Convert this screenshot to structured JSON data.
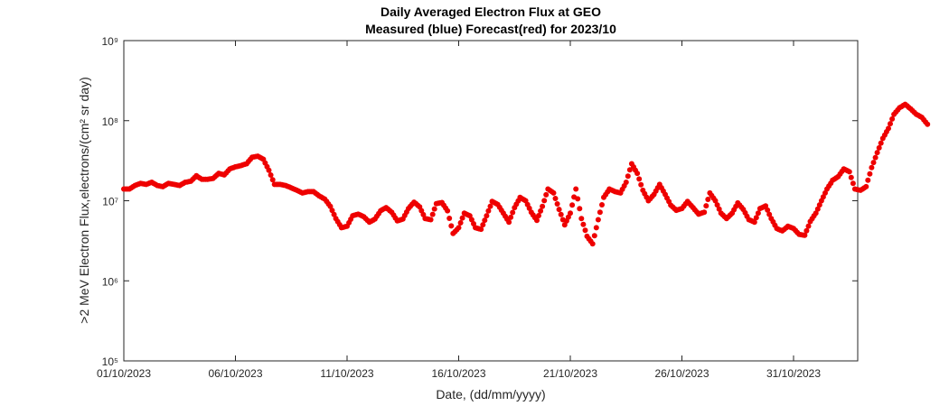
{
  "chart_data": {
    "type": "scatter",
    "title": "Daily Averaged Electron Flux at GEO",
    "subtitle": "Measured (blue) Forecast(red) for 2023/10",
    "xlabel": "Date, (dd/mm/yyyy)",
    "ylabel": ">2 MeV Electron Flux,electrons/(cm² sr day)",
    "yscale": "log",
    "ylim": [
      100000,
      1000000000
    ],
    "xlim": [
      "2023-10-01",
      "2023-11-04"
    ],
    "x_ticks": [
      "01/10/2023",
      "06/10/2023",
      "11/10/2023",
      "16/10/2023",
      "21/10/2023",
      "26/10/2023",
      "31/10/2023"
    ],
    "y_ticks": [
      "10⁵",
      "10⁶",
      "10⁷",
      "10⁸",
      "10⁹"
    ],
    "grid": false,
    "marker_color": "#ee0000",
    "series": [
      {
        "color": "#ee0000",
        "points": [
          [
            "2023-10-01 00:00",
            14000000
          ],
          [
            "2023-10-01 06:00",
            14000000
          ],
          [
            "2023-10-01 12:00",
            15500000
          ],
          [
            "2023-10-01 18:00",
            16500000
          ],
          [
            "2023-10-02 00:00",
            16000000
          ],
          [
            "2023-10-02 06:00",
            17000000
          ],
          [
            "2023-10-02 12:00",
            15500000
          ],
          [
            "2023-10-02 18:00",
            15000000
          ],
          [
            "2023-10-03 00:00",
            16500000
          ],
          [
            "2023-10-03 06:00",
            16000000
          ],
          [
            "2023-10-03 12:00",
            15500000
          ],
          [
            "2023-10-03 18:00",
            17000000
          ],
          [
            "2023-10-04 00:00",
            17500000
          ],
          [
            "2023-10-04 06:00",
            20500000
          ],
          [
            "2023-10-04 12:00",
            18500000
          ],
          [
            "2023-10-04 18:00",
            18500000
          ],
          [
            "2023-10-05 00:00",
            19000000
          ],
          [
            "2023-10-05 06:00",
            22000000
          ],
          [
            "2023-10-05 12:00",
            21000000
          ],
          [
            "2023-10-05 18:00",
            25000000
          ],
          [
            "2023-10-06 00:00",
            26500000
          ],
          [
            "2023-10-06 06:00",
            27500000
          ],
          [
            "2023-10-06 12:00",
            29000000
          ],
          [
            "2023-10-06 18:00",
            35000000
          ],
          [
            "2023-10-07 00:00",
            36000000
          ],
          [
            "2023-10-07 06:00",
            33000000
          ],
          [
            "2023-10-07 12:00",
            24000000
          ],
          [
            "2023-10-07 18:00",
            16000000
          ],
          [
            "2023-10-08 00:00",
            16000000
          ],
          [
            "2023-10-08 06:00",
            15500000
          ],
          [
            "2023-10-08 12:00",
            14500000
          ],
          [
            "2023-10-08 18:00",
            13500000
          ],
          [
            "2023-10-09 00:00",
            12500000
          ],
          [
            "2023-10-09 06:00",
            13000000
          ],
          [
            "2023-10-09 12:00",
            13000000
          ],
          [
            "2023-10-09 18:00",
            11500000
          ],
          [
            "2023-10-10 00:00",
            10500000
          ],
          [
            "2023-10-10 06:00",
            8500000
          ],
          [
            "2023-10-10 12:00",
            6000000
          ],
          [
            "2023-10-10 18:00",
            4600000
          ],
          [
            "2023-10-11 00:00",
            4800000
          ],
          [
            "2023-10-11 06:00",
            6500000
          ],
          [
            "2023-10-11 12:00",
            6800000
          ],
          [
            "2023-10-11 18:00",
            6300000
          ],
          [
            "2023-10-12 00:00",
            5400000
          ],
          [
            "2023-10-12 06:00",
            5900000
          ],
          [
            "2023-10-12 12:00",
            7500000
          ],
          [
            "2023-10-12 18:00",
            8200000
          ],
          [
            "2023-10-13 00:00",
            7200000
          ],
          [
            "2023-10-13 06:00",
            5600000
          ],
          [
            "2023-10-13 12:00",
            5900000
          ],
          [
            "2023-10-13 18:00",
            8000000
          ],
          [
            "2023-10-14 00:00",
            9600000
          ],
          [
            "2023-10-14 06:00",
            8400000
          ],
          [
            "2023-10-14 12:00",
            6000000
          ],
          [
            "2023-10-14 18:00",
            5800000
          ],
          [
            "2023-10-15 00:00",
            9200000
          ],
          [
            "2023-10-15 06:00",
            9500000
          ],
          [
            "2023-10-15 12:00",
            7500000
          ],
          [
            "2023-10-15 18:00",
            3900000
          ],
          [
            "2023-10-16 00:00",
            4600000
          ],
          [
            "2023-10-16 06:00",
            7000000
          ],
          [
            "2023-10-16 12:00",
            6500000
          ],
          [
            "2023-10-16 18:00",
            4600000
          ],
          [
            "2023-10-17 00:00",
            4400000
          ],
          [
            "2023-10-17 06:00",
            6500000
          ],
          [
            "2023-10-17 12:00",
            9800000
          ],
          [
            "2023-10-17 18:00",
            9000000
          ],
          [
            "2023-10-18 00:00",
            7000000
          ],
          [
            "2023-10-18 06:00",
            5400000
          ],
          [
            "2023-10-18 12:00",
            8200000
          ],
          [
            "2023-10-18 18:00",
            11000000
          ],
          [
            "2023-10-19 00:00",
            10000000
          ],
          [
            "2023-10-19 06:00",
            7200000
          ],
          [
            "2023-10-19 12:00",
            5700000
          ],
          [
            "2023-10-19 18:00",
            8500000
          ],
          [
            "2023-10-20 00:00",
            14000000
          ],
          [
            "2023-10-20 06:00",
            12500000
          ],
          [
            "2023-10-20 12:00",
            7800000
          ],
          [
            "2023-10-20 18:00",
            5000000
          ],
          [
            "2023-10-21 00:00",
            7000000
          ],
          [
            "2023-10-21 06:00",
            14000000
          ],
          [
            "2023-10-21 12:00",
            6000000
          ],
          [
            "2023-10-21 18:00",
            3600000
          ],
          [
            "2023-10-22 00:00",
            2900000
          ],
          [
            "2023-10-22 06:00",
            5800000
          ],
          [
            "2023-10-22 12:00",
            11000000
          ],
          [
            "2023-10-22 18:00",
            14000000
          ],
          [
            "2023-10-23 00:00",
            13000000
          ],
          [
            "2023-10-23 06:00",
            12500000
          ],
          [
            "2023-10-23 12:00",
            17000000
          ],
          [
            "2023-10-23 18:00",
            29000000
          ],
          [
            "2023-10-24 00:00",
            22000000
          ],
          [
            "2023-10-24 06:00",
            13500000
          ],
          [
            "2023-10-24 12:00",
            10000000
          ],
          [
            "2023-10-24 18:00",
            12000000
          ],
          [
            "2023-10-25 00:00",
            16000000
          ],
          [
            "2023-10-25 06:00",
            12000000
          ],
          [
            "2023-10-25 12:00",
            8800000
          ],
          [
            "2023-10-25 18:00",
            7600000
          ],
          [
            "2023-10-26 00:00",
            8000000
          ],
          [
            "2023-10-26 06:00",
            9800000
          ],
          [
            "2023-10-26 12:00",
            8200000
          ],
          [
            "2023-10-26 18:00",
            6800000
          ],
          [
            "2023-10-27 00:00",
            7200000
          ],
          [
            "2023-10-27 06:00",
            12500000
          ],
          [
            "2023-10-27 12:00",
            10000000
          ],
          [
            "2023-10-27 18:00",
            7000000
          ],
          [
            "2023-10-28 00:00",
            6000000
          ],
          [
            "2023-10-28 06:00",
            7000000
          ],
          [
            "2023-10-28 12:00",
            9400000
          ],
          [
            "2023-10-28 18:00",
            7800000
          ],
          [
            "2023-10-29 00:00",
            5800000
          ],
          [
            "2023-10-29 06:00",
            5400000
          ],
          [
            "2023-10-29 12:00",
            8000000
          ],
          [
            "2023-10-29 18:00",
            8600000
          ],
          [
            "2023-10-30 00:00",
            6000000
          ],
          [
            "2023-10-30 06:00",
            4500000
          ],
          [
            "2023-10-30 12:00",
            4200000
          ],
          [
            "2023-10-30 18:00",
            4800000
          ],
          [
            "2023-10-31 00:00",
            4500000
          ],
          [
            "2023-10-31 06:00",
            3800000
          ],
          [
            "2023-10-31 12:00",
            3700000
          ],
          [
            "2023-10-31 18:00",
            5500000
          ],
          [
            "2023-11-01 00:00",
            7000000
          ],
          [
            "2023-11-01 06:00",
            10000000
          ],
          [
            "2023-11-01 12:00",
            14000000
          ],
          [
            "2023-11-01 18:00",
            18000000
          ],
          [
            "2023-11-02 00:00",
            20000000
          ],
          [
            "2023-11-02 06:00",
            25000000
          ],
          [
            "2023-11-02 12:00",
            23000000
          ],
          [
            "2023-11-02 18:00",
            14000000
          ],
          [
            "2023-11-03 00:00",
            13500000
          ],
          [
            "2023-11-03 06:00",
            15000000
          ],
          [
            "2023-11-03 12:00",
            26000000
          ],
          [
            "2023-11-03 18:00",
            40000000
          ],
          [
            "2023-11-04 00:00",
            60000000
          ],
          [
            "2023-11-04 06:00",
            80000000
          ],
          [
            "2023-11-04 12:00",
            120000000
          ],
          [
            "2023-11-04 18:00",
            145000000
          ],
          [
            "2023-11-05 00:00",
            160000000
          ],
          [
            "2023-11-05 06:00",
            140000000
          ],
          [
            "2023-11-05 12:00",
            120000000
          ],
          [
            "2023-11-05 18:00",
            110000000
          ],
          [
            "2023-11-06 00:00",
            90000000
          ]
        ]
      }
    ]
  }
}
